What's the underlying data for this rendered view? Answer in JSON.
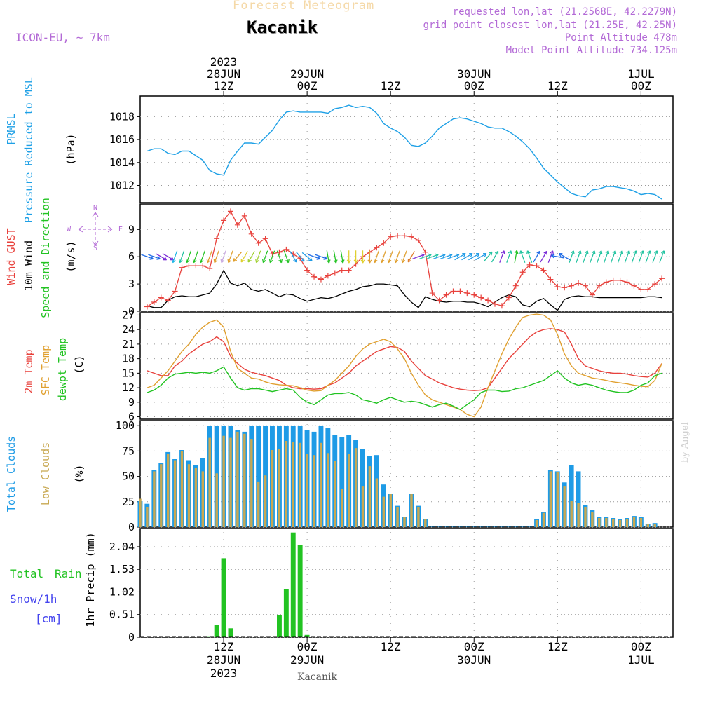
{
  "header": {
    "title": "Forecast Meteogram",
    "station": "Kacanik",
    "model": "ICON-EU, ~ 7km",
    "requested": "requested lon,lat (21.2568E, 42.2279N)",
    "grid_point": "grid point closest lon,lat (21.25E, 42.25N)",
    "point_altitude": "Point Altitude 478m",
    "model_altitude": "Model Point Altitude 734.125m",
    "footer": "Kacanik",
    "credit": "by Angel"
  },
  "colors": {
    "pressure": "#1ea0e6",
    "gust": "#e8413c",
    "wind": "#000000",
    "temp2m": "#e8413c",
    "sfctemp": "#e0a030",
    "dewpt": "#22c322",
    "total_clouds": "#1e9be6",
    "low_clouds": "#c8a852",
    "precip": "#22c322",
    "snow": "#4444ee",
    "wind_rose": "#b36ad6",
    "grid": "#999999"
  },
  "chart_data": [
    {
      "type": "line",
      "name": "pressure",
      "labels": [
        "PRMSL",
        "Pressure Reduced to MSL",
        "(hPa)"
      ],
      "x": [
        1,
        2,
        3,
        4,
        5,
        6,
        7,
        8,
        9,
        10,
        11,
        12,
        13,
        14,
        15,
        16,
        17,
        18,
        19,
        20,
        21,
        22,
        23,
        24,
        25,
        26,
        27,
        28,
        29,
        30,
        31,
        32,
        33,
        34,
        35,
        36,
        37,
        38,
        39,
        40,
        41,
        42,
        43,
        44,
        45,
        46,
        47,
        48,
        49,
        50,
        51,
        52,
        53,
        54,
        55,
        56,
        57,
        58,
        59,
        60,
        61,
        62,
        63,
        64,
        65,
        66,
        67,
        68,
        69,
        70,
        71,
        72,
        73,
        74,
        75
      ],
      "values": [
        1015.0,
        1015.2,
        1015.2,
        1014.8,
        1014.7,
        1015.0,
        1015.0,
        1014.6,
        1014.2,
        1013.3,
        1013.0,
        1012.9,
        1014.2,
        1015.0,
        1015.7,
        1015.7,
        1015.6,
        1016.2,
        1016.8,
        1017.7,
        1018.4,
        1018.5,
        1018.4,
        1018.4,
        1018.4,
        1018.4,
        1018.3,
        1018.7,
        1018.8,
        1019.0,
        1018.8,
        1018.9,
        1018.8,
        1018.3,
        1017.4,
        1017.0,
        1016.7,
        1016.2,
        1015.5,
        1015.4,
        1015.7,
        1016.3,
        1017.0,
        1017.4,
        1017.8,
        1017.9,
        1017.8,
        1017.6,
        1017.4,
        1017.1,
        1017.0,
        1017.0,
        1016.7,
        1016.3,
        1015.8,
        1015.2,
        1014.4,
        1013.5,
        1012.9,
        1012.3,
        1011.8,
        1011.3,
        1011.1,
        1011.0,
        1011.6,
        1011.7,
        1011.9,
        1011.9,
        1011.8,
        1011.7,
        1011.5,
        1011.2,
        1011.3,
        1011.2,
        1010.8
      ],
      "ylim": [
        1010.5,
        1019.8
      ],
      "yticks": [
        1012,
        1014,
        1016,
        1018
      ]
    },
    {
      "type": "line",
      "name": "wind",
      "labels": [
        "Wind GUST",
        "10m Wind",
        "Speed and Direction",
        "(m/s)"
      ],
      "compass": [
        "N",
        "S",
        "W",
        "E"
      ],
      "x": [
        1,
        2,
        3,
        4,
        5,
        6,
        7,
        8,
        9,
        10,
        11,
        12,
        13,
        14,
        15,
        16,
        17,
        18,
        19,
        20,
        21,
        22,
        23,
        24,
        25,
        26,
        27,
        28,
        29,
        30,
        31,
        32,
        33,
        34,
        35,
        36,
        37,
        38,
        39,
        40,
        41,
        42,
        43,
        44,
        45,
        46,
        47,
        48,
        49,
        50,
        51,
        52,
        53,
        54,
        55,
        56,
        57,
        58,
        59,
        60,
        61,
        62,
        63,
        64,
        65,
        66,
        67,
        68,
        69,
        70,
        71,
        72,
        73,
        74,
        75
      ],
      "gust": [
        0.5,
        1.0,
        1.5,
        1.2,
        2.2,
        4.8,
        5.0,
        5.0,
        5.0,
        4.7,
        8.0,
        10.0,
        11.0,
        9.5,
        10.5,
        8.5,
        7.5,
        8.0,
        6.3,
        6.5,
        6.8,
        6.3,
        5.8,
        4.5,
        3.8,
        3.5,
        3.9,
        4.2,
        4.5,
        4.5,
        5.2,
        6.0,
        6.5,
        7.0,
        7.5,
        8.2,
        8.3,
        8.3,
        8.2,
        7.8,
        6.5,
        2.0,
        1.2,
        1.8,
        2.2,
        2.2,
        2.0,
        1.8,
        1.5,
        1.2,
        0.8,
        0.6,
        1.5,
        2.8,
        4.3,
        5.1,
        5.0,
        4.5,
        3.5,
        2.7,
        2.6,
        2.8,
        3.1,
        2.8,
        1.8,
        2.8,
        3.2,
        3.4,
        3.4,
        3.2,
        2.8,
        2.4,
        2.4,
        3.0,
        3.6
      ],
      "speed": [
        0.6,
        0.4,
        0.4,
        1.2,
        1.6,
        1.7,
        1.6,
        1.6,
        1.8,
        2.0,
        3.0,
        4.5,
        3.1,
        2.8,
        3.1,
        2.4,
        2.2,
        2.4,
        2.0,
        1.6,
        1.9,
        1.8,
        1.4,
        1.1,
        1.3,
        1.5,
        1.4,
        1.6,
        1.9,
        2.2,
        2.4,
        2.7,
        2.8,
        3.0,
        3.0,
        2.9,
        2.8,
        1.8,
        1.0,
        0.4,
        1.6,
        1.3,
        1.1,
        1.0,
        1.1,
        1.1,
        1.0,
        1.0,
        0.8,
        0.5,
        1.0,
        1.5,
        1.8,
        1.6,
        0.7,
        0.5,
        1.1,
        1.4,
        0.7,
        0.1,
        1.3,
        1.6,
        1.7,
        1.6,
        1.6,
        1.5,
        1.5,
        1.5,
        1.5,
        1.5,
        1.5,
        1.5,
        1.6,
        1.6,
        1.5
      ],
      "ylim": [
        0,
        11.8
      ],
      "yticks": [
        0,
        3,
        6,
        9
      ]
    },
    {
      "type": "line",
      "name": "temperature",
      "labels": [
        "2m Temp",
        "SFC Temp",
        "dewpt Temp",
        "(C)"
      ],
      "x": [
        1,
        2,
        3,
        4,
        5,
        6,
        7,
        8,
        9,
        10,
        11,
        12,
        13,
        14,
        15,
        16,
        17,
        18,
        19,
        20,
        21,
        22,
        23,
        24,
        25,
        26,
        27,
        28,
        29,
        30,
        31,
        32,
        33,
        34,
        35,
        36,
        37,
        38,
        39,
        40,
        41,
        42,
        43,
        44,
        45,
        46,
        47,
        48,
        49,
        50,
        51,
        52,
        53,
        54,
        55,
        56,
        57,
        58,
        59,
        60,
        61,
        62,
        63,
        64,
        65,
        66,
        67,
        68,
        69,
        70,
        71,
        72,
        73,
        74,
        75
      ],
      "temp2m": [
        15.5,
        15.0,
        14.5,
        14.5,
        16.5,
        17.5,
        19.0,
        20.0,
        21.0,
        21.5,
        22.5,
        21.5,
        18.5,
        17.0,
        15.8,
        15.2,
        14.8,
        14.5,
        14.0,
        13.5,
        12.5,
        12.0,
        11.8,
        11.8,
        11.7,
        11.8,
        12.5,
        13.0,
        14.0,
        15.0,
        16.5,
        17.5,
        18.5,
        19.5,
        20.0,
        20.5,
        20.3,
        19.5,
        17.5,
        16.0,
        14.5,
        13.8,
        13.0,
        12.5,
        12.0,
        11.7,
        11.5,
        11.4,
        11.5,
        12.0,
        14.0,
        16.0,
        18.0,
        19.5,
        21.0,
        22.5,
        23.5,
        24.0,
        24.2,
        24.0,
        23.5,
        21.0,
        18.0,
        16.5,
        16.0,
        15.5,
        15.2,
        15.0,
        15.0,
        14.8,
        14.5,
        14.3,
        14.2,
        15.0,
        17.0
      ],
      "sfctemp": [
        12.0,
        12.5,
        14.0,
        15.5,
        17.5,
        19.5,
        21.0,
        23.0,
        24.5,
        25.5,
        26.0,
        24.5,
        19.5,
        16.0,
        15.0,
        14.0,
        13.8,
        13.2,
        12.8,
        12.6,
        12.5,
        12.4,
        12.0,
        11.5,
        11.3,
        11.4,
        12.5,
        13.5,
        15.0,
        16.5,
        18.5,
        20.0,
        21.0,
        21.5,
        22.0,
        21.5,
        20.0,
        18.0,
        15.0,
        12.5,
        10.5,
        9.5,
        9.0,
        8.5,
        8.0,
        7.5,
        6.5,
        6.0,
        8.0,
        12.0,
        15.5,
        19.0,
        22.0,
        24.5,
        26.5,
        27.0,
        27.2,
        27.0,
        26.0,
        23.0,
        19.0,
        16.5,
        15.0,
        14.5,
        14.0,
        13.8,
        13.5,
        13.2,
        13.0,
        12.8,
        12.5,
        12.3,
        12.2,
        13.5,
        17.0
      ],
      "dewpt": [
        11.0,
        11.5,
        12.5,
        14.0,
        14.8,
        15.0,
        15.2,
        15.0,
        15.2,
        15.0,
        15.5,
        16.3,
        14.0,
        12.0,
        11.5,
        11.8,
        11.8,
        11.5,
        11.2,
        11.5,
        11.8,
        11.5,
        10.0,
        9.0,
        8.5,
        9.5,
        10.5,
        10.8,
        10.8,
        11.0,
        10.5,
        9.5,
        9.2,
        8.8,
        9.5,
        10.0,
        9.5,
        9.0,
        9.2,
        9.0,
        8.5,
        8.0,
        8.5,
        8.8,
        8.2,
        7.5,
        8.5,
        9.5,
        11.0,
        11.5,
        11.5,
        11.2,
        11.3,
        11.8,
        12.0,
        12.5,
        13.0,
        13.5,
        14.5,
        15.5,
        14.0,
        13.0,
        12.5,
        12.8,
        12.5,
        12.0,
        11.5,
        11.2,
        11.0,
        11.0,
        11.5,
        12.5,
        13.0,
        14.5,
        15.0
      ],
      "ylim": [
        5.5,
        27.5
      ],
      "yticks": [
        6,
        9,
        12,
        15,
        18,
        21,
        24,
        27
      ]
    },
    {
      "type": "bar",
      "name": "clouds",
      "labels": [
        "Total Clouds",
        "Low Clouds",
        "(%)"
      ],
      "x": [
        0,
        1,
        2,
        3,
        4,
        5,
        6,
        7,
        8,
        9,
        10,
        11,
        12,
        13,
        14,
        15,
        16,
        17,
        18,
        19,
        20,
        21,
        22,
        23,
        24,
        25,
        26,
        27,
        28,
        29,
        30,
        31,
        32,
        33,
        34,
        35,
        36,
        37,
        38,
        39,
        40,
        41,
        42,
        43,
        44,
        45,
        46,
        47,
        48,
        49,
        50,
        51,
        52,
        53,
        54,
        55,
        56,
        57,
        58,
        59,
        60,
        61,
        62,
        63,
        64,
        65,
        66,
        67,
        68,
        69,
        70,
        71,
        72,
        73,
        74
      ],
      "total": [
        26,
        23,
        56,
        63,
        74,
        67,
        76,
        66,
        61,
        68,
        100,
        100,
        100,
        100,
        96,
        94,
        100,
        100,
        100,
        100,
        100,
        100,
        100,
        100,
        96,
        94,
        100,
        98,
        91,
        89,
        91,
        86,
        77,
        70,
        71,
        42,
        33,
        21,
        10,
        33,
        21,
        8,
        0,
        0,
        0,
        0,
        0,
        0,
        0,
        0,
        0,
        0,
        0,
        0,
        0,
        0,
        0,
        8,
        15,
        56,
        55,
        44,
        61,
        55,
        22,
        17,
        10,
        10,
        9,
        8,
        9,
        11,
        10,
        3,
        4
      ],
      "low": [
        28,
        20,
        55,
        62,
        72,
        66,
        75,
        62,
        58,
        55,
        88,
        53,
        90,
        88,
        94,
        92,
        87,
        45,
        51,
        76,
        77,
        85,
        84,
        83,
        72,
        71,
        83,
        73,
        65,
        38,
        72,
        78,
        40,
        60,
        48,
        30,
        33,
        20,
        10,
        33,
        20,
        8,
        0,
        0,
        0,
        0,
        0,
        0,
        0,
        0,
        0,
        0,
        0,
        0,
        0,
        0,
        0,
        7,
        14,
        55,
        54,
        40,
        26,
        24,
        20,
        15,
        9,
        9,
        8,
        7,
        8,
        10,
        9,
        3,
        3
      ],
      "ylim": [
        0,
        105
      ],
      "yticks": [
        0,
        25,
        50,
        75,
        100
      ]
    },
    {
      "type": "bar",
      "name": "precip",
      "labels": [
        "Total Rain",
        "Snow/1h",
        "[cm]",
        "1hr Precip (mm)"
      ],
      "x": [
        10,
        11,
        12,
        13,
        20,
        21,
        22,
        23,
        24
      ],
      "values": [
        0.02,
        0.27,
        1.78,
        0.2,
        0.49,
        1.09,
        2.36,
        2.07,
        0.05
      ],
      "ylim": [
        0,
        2.45
      ],
      "yticks": [
        0,
        0.51,
        1.02,
        1.53,
        2.04
      ]
    }
  ],
  "wind_arrows": {
    "x": [
      1,
      2,
      3,
      4,
      5,
      6,
      7,
      8,
      9,
      10,
      11,
      12,
      13,
      14,
      15,
      16,
      17,
      18,
      19,
      20,
      21,
      22,
      23,
      24,
      25,
      26,
      27,
      28,
      29,
      30,
      31,
      32,
      33,
      34,
      35,
      36,
      37,
      38,
      39,
      40,
      41,
      42,
      43,
      44,
      45,
      46,
      47,
      48,
      49,
      50,
      51,
      52,
      53,
      54,
      55,
      56,
      57,
      58,
      59,
      60,
      61,
      62,
      63,
      64,
      65,
      66,
      67,
      68,
      69,
      70,
      71,
      72,
      73,
      74,
      75
    ],
    "bearing": [
      110,
      110,
      120,
      120,
      200,
      200,
      200,
      200,
      200,
      200,
      200,
      200,
      200,
      220,
      210,
      210,
      200,
      200,
      200,
      160,
      160,
      150,
      140,
      130,
      110,
      110,
      170,
      170,
      170,
      180,
      180,
      180,
      180,
      200,
      200,
      200,
      200,
      200,
      210,
      70,
      70,
      70,
      70,
      70,
      70,
      60,
      60,
      60,
      60,
      40,
      30,
      20,
      20,
      10,
      340,
      340,
      30,
      30,
      20,
      280,
      300,
      20,
      20,
      20,
      20,
      20,
      20,
      20,
      20,
      20,
      20,
      20,
      20,
      20,
      20
    ],
    "colors": [
      "#1e6be6",
      "#1e6be6",
      "#7a2cd6",
      "#7a2cd6",
      "#22b8e6",
      "#22c3a0",
      "#22c322",
      "#22c322",
      "#22c322",
      "#e0a030",
      "#e0a030",
      "#c8a8e0",
      "#e0a030",
      "#e0a030",
      "#e0d030",
      "#a0d030",
      "#a0d030",
      "#22c322",
      "#22c322",
      "#22c322",
      "#22c322",
      "#1e9be6",
      "#1e9be6",
      "#1e9be6",
      "#1e6be6",
      "#1e6be6",
      "#22c322",
      "#22c322",
      "#22c322",
      "#e0d030",
      "#e0d030",
      "#e0d030",
      "#e0a030",
      "#e0a030",
      "#e0a030",
      "#e0a030",
      "#e0a030",
      "#e0a030",
      "#e08030",
      "#7a2cd6",
      "#22c3a0",
      "#22c3a0",
      "#1e9be6",
      "#1e9be6",
      "#1e9be6",
      "#1e9be6",
      "#1e9be6",
      "#1e9be6",
      "#1e9be6",
      "#22c3a0",
      "#22c3a0",
      "#7a2cd6",
      "#22c3a0",
      "#22c322",
      "#22c3a0",
      "#22c3a0",
      "#1e6be6",
      "#7a2cd6",
      "#7a2cd6",
      "#1e6be6",
      "#1e6be6",
      "#22c3a0",
      "#22c3a0",
      "#22c3a0",
      "#22c3a0",
      "#22c3a0",
      "#22c3a0",
      "#22c3a0",
      "#22c3a0",
      "#22c3a0",
      "#22c3a0",
      "#22c3a0",
      "#22c3a0",
      "#22c3a0",
      "#22c3a0"
    ]
  },
  "time_axis": {
    "top": [
      {
        "x": 12,
        "lines": [
          "2023",
          "28JUN",
          "12Z"
        ]
      },
      {
        "x": 24,
        "lines": [
          "29JUN",
          "00Z"
        ]
      },
      {
        "x": 36,
        "lines": [
          "12Z"
        ]
      },
      {
        "x": 48,
        "lines": [
          "30JUN",
          "00Z"
        ]
      },
      {
        "x": 60,
        "lines": [
          "12Z"
        ]
      },
      {
        "x": 72,
        "lines": [
          "1JUL",
          "00Z"
        ]
      }
    ],
    "bottom": [
      {
        "x": 12,
        "lines": [
          "12Z",
          "28JUN",
          "2023"
        ]
      },
      {
        "x": 24,
        "lines": [
          "00Z",
          "29JUN"
        ]
      },
      {
        "x": 36,
        "lines": [
          "12Z"
        ]
      },
      {
        "x": 48,
        "lines": [
          "00Z",
          "30JUN"
        ]
      },
      {
        "x": 60,
        "lines": [
          "12Z"
        ]
      },
      {
        "x": 72,
        "lines": [
          "00Z",
          "1JUL"
        ]
      }
    ],
    "xlim": [
      0,
      76.6
    ]
  }
}
